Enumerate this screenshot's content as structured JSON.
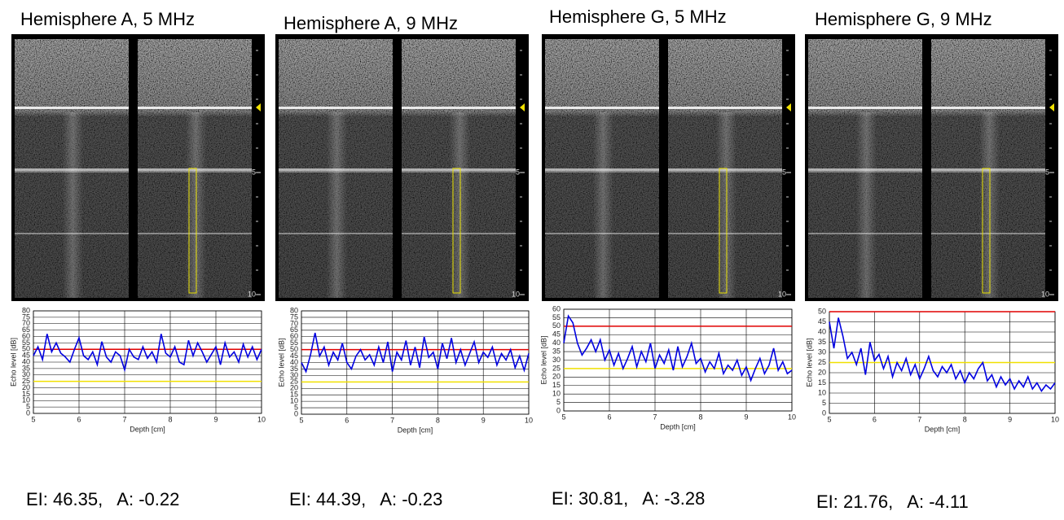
{
  "chart_data": [
    {
      "type": "line",
      "title": "Hemisphere A, 5 MHz",
      "xlabel": "Depth [cm]",
      "ylabel": "Echo level [dB]",
      "caption": "EI: 46.35,   A: -0.22",
      "image_depth_ticks": [
        5,
        10
      ],
      "x": [
        5.0,
        5.1,
        5.2,
        5.3,
        5.4,
        5.5,
        5.6,
        5.7,
        5.8,
        5.9,
        6.0,
        6.1,
        6.2,
        6.3,
        6.4,
        6.5,
        6.6,
        6.7,
        6.8,
        6.9,
        7.0,
        7.1,
        7.2,
        7.3,
        7.4,
        7.5,
        7.6,
        7.7,
        7.8,
        7.9,
        8.0,
        8.1,
        8.2,
        8.3,
        8.4,
        8.5,
        8.6,
        8.7,
        8.8,
        8.9,
        9.0,
        9.1,
        9.2,
        9.3,
        9.4,
        9.5,
        9.6,
        9.7,
        9.8,
        9.9,
        10.0
      ],
      "series": [
        {
          "color": "#0000e0",
          "values": [
            45,
            52,
            42,
            62,
            48,
            55,
            47,
            44,
            40,
            50,
            59,
            45,
            42,
            48,
            38,
            56,
            44,
            40,
            48,
            45,
            34,
            50,
            44,
            42,
            52,
            43,
            48,
            40,
            62,
            47,
            44,
            52,
            40,
            38,
            57,
            45,
            55,
            48,
            40,
            46,
            52,
            38,
            55,
            44,
            48,
            40,
            54,
            44,
            52,
            42,
            50
          ]
        }
      ],
      "reference_lines": [
        {
          "value": 50,
          "color": "#e00000"
        },
        {
          "value": 25,
          "color": "#f0e000"
        }
      ],
      "xlim": [
        5,
        10
      ],
      "xticks": [
        5,
        6,
        7,
        8,
        9,
        10
      ],
      "ylim": [
        0,
        80
      ],
      "yticks": [
        0,
        5,
        10,
        15,
        20,
        25,
        30,
        35,
        40,
        45,
        50,
        55,
        60,
        65,
        70,
        75,
        80
      ],
      "grid": true
    },
    {
      "type": "line",
      "title": "Hemisphere A, 9 MHz",
      "xlabel": "Depth [cm]",
      "ylabel": "Echo level [dB]",
      "caption": "EI: 44.39,   A: -0.23",
      "image_depth_ticks": [
        5,
        10
      ],
      "x": [
        5.0,
        5.1,
        5.2,
        5.3,
        5.4,
        5.5,
        5.6,
        5.7,
        5.8,
        5.9,
        6.0,
        6.1,
        6.2,
        6.3,
        6.4,
        6.5,
        6.6,
        6.7,
        6.8,
        6.9,
        7.0,
        7.1,
        7.2,
        7.3,
        7.4,
        7.5,
        7.6,
        7.7,
        7.8,
        7.9,
        8.0,
        8.1,
        8.2,
        8.3,
        8.4,
        8.5,
        8.6,
        8.7,
        8.8,
        8.9,
        9.0,
        9.1,
        9.2,
        9.3,
        9.4,
        9.5,
        9.6,
        9.7,
        9.8,
        9.9,
        10.0
      ],
      "series": [
        {
          "color": "#0000e0",
          "values": [
            40,
            33,
            46,
            63,
            45,
            52,
            38,
            48,
            42,
            55,
            40,
            35,
            45,
            50,
            42,
            46,
            38,
            52,
            40,
            56,
            33,
            48,
            42,
            57,
            38,
            52,
            36,
            60,
            44,
            48,
            35,
            55,
            43,
            59,
            40,
            50,
            38,
            47,
            56,
            40,
            48,
            44,
            52,
            38,
            47,
            42,
            50,
            36,
            45,
            34,
            47
          ]
        }
      ],
      "reference_lines": [
        {
          "value": 50,
          "color": "#e00000"
        },
        {
          "value": 25,
          "color": "#f0e000"
        }
      ],
      "xlim": [
        5,
        10
      ],
      "xticks": [
        5,
        6,
        7,
        8,
        9,
        10
      ],
      "ylim": [
        0,
        80
      ],
      "yticks": [
        0,
        5,
        10,
        15,
        20,
        25,
        30,
        35,
        40,
        45,
        50,
        55,
        60,
        65,
        70,
        75,
        80
      ],
      "grid": true
    },
    {
      "type": "line",
      "title": "Hemisphere G, 5 MHz",
      "xlabel": "Depth [cm]",
      "ylabel": "Echo level [dB]",
      "caption": "EI: 30.81,   A: -3.28",
      "image_depth_ticks": [
        5,
        10
      ],
      "x": [
        5.0,
        5.1,
        5.2,
        5.3,
        5.4,
        5.5,
        5.6,
        5.7,
        5.8,
        5.9,
        6.0,
        6.1,
        6.2,
        6.3,
        6.4,
        6.5,
        6.6,
        6.7,
        6.8,
        6.9,
        7.0,
        7.1,
        7.2,
        7.3,
        7.4,
        7.5,
        7.6,
        7.7,
        7.8,
        7.9,
        8.0,
        8.1,
        8.2,
        8.3,
        8.4,
        8.5,
        8.6,
        8.7,
        8.8,
        8.9,
        9.0,
        9.1,
        9.2,
        9.3,
        9.4,
        9.5,
        9.6,
        9.7,
        9.8,
        9.9,
        10.0
      ],
      "series": [
        {
          "color": "#0000e0",
          "values": [
            40,
            56,
            52,
            40,
            33,
            37,
            42,
            35,
            42,
            30,
            36,
            27,
            34,
            25,
            31,
            38,
            26,
            35,
            29,
            40,
            25,
            33,
            28,
            36,
            24,
            38,
            26,
            32,
            40,
            28,
            31,
            23,
            29,
            25,
            34,
            22,
            27,
            24,
            30,
            21,
            26,
            18,
            25,
            31,
            22,
            27,
            37,
            24,
            29,
            22,
            24
          ]
        }
      ],
      "reference_lines": [
        {
          "value": 50,
          "color": "#e00000"
        },
        {
          "value": 25,
          "color": "#f0e000"
        }
      ],
      "xlim": [
        5,
        10
      ],
      "xticks": [
        5,
        6,
        7,
        8,
        9,
        10
      ],
      "ylim": [
        0,
        60
      ],
      "yticks": [
        0,
        5,
        10,
        15,
        20,
        25,
        30,
        35,
        40,
        45,
        50,
        55,
        60
      ],
      "grid": true
    },
    {
      "type": "line",
      "title": "Hemisphere G, 9 MHz",
      "xlabel": "Depth [cm]",
      "ylabel": "Echo level [dB]",
      "caption": "EI: 21.76,   A: -4.11",
      "image_depth_ticks": [
        5,
        10
      ],
      "x": [
        5.0,
        5.1,
        5.2,
        5.3,
        5.4,
        5.5,
        5.6,
        5.7,
        5.8,
        5.9,
        6.0,
        6.1,
        6.2,
        6.3,
        6.4,
        6.5,
        6.6,
        6.7,
        6.8,
        6.9,
        7.0,
        7.1,
        7.2,
        7.3,
        7.4,
        7.5,
        7.6,
        7.7,
        7.8,
        7.9,
        8.0,
        8.1,
        8.2,
        8.3,
        8.4,
        8.5,
        8.6,
        8.7,
        8.8,
        8.9,
        9.0,
        9.1,
        9.2,
        9.3,
        9.4,
        9.5,
        9.6,
        9.7,
        9.8,
        9.9,
        10.0
      ],
      "series": [
        {
          "color": "#0000e0",
          "values": [
            45,
            32,
            47,
            38,
            27,
            30,
            24,
            32,
            19,
            35,
            26,
            29,
            22,
            28,
            18,
            25,
            21,
            27,
            19,
            24,
            17,
            22,
            28,
            21,
            18,
            23,
            20,
            24,
            17,
            21,
            15,
            20,
            17,
            22,
            25,
            16,
            19,
            13,
            18,
            14,
            17,
            12,
            16,
            13,
            18,
            12,
            15,
            11,
            14,
            12,
            15
          ]
        }
      ],
      "reference_lines": [
        {
          "value": 50,
          "color": "#e00000"
        },
        {
          "value": 25,
          "color": "#f0e000"
        }
      ],
      "xlim": [
        5,
        10
      ],
      "xticks": [
        5,
        6,
        7,
        8,
        9,
        10
      ],
      "ylim": [
        0,
        50
      ],
      "yticks": [
        0,
        5,
        10,
        15,
        20,
        25,
        30,
        35,
        40,
        45,
        50
      ],
      "grid": true
    }
  ]
}
